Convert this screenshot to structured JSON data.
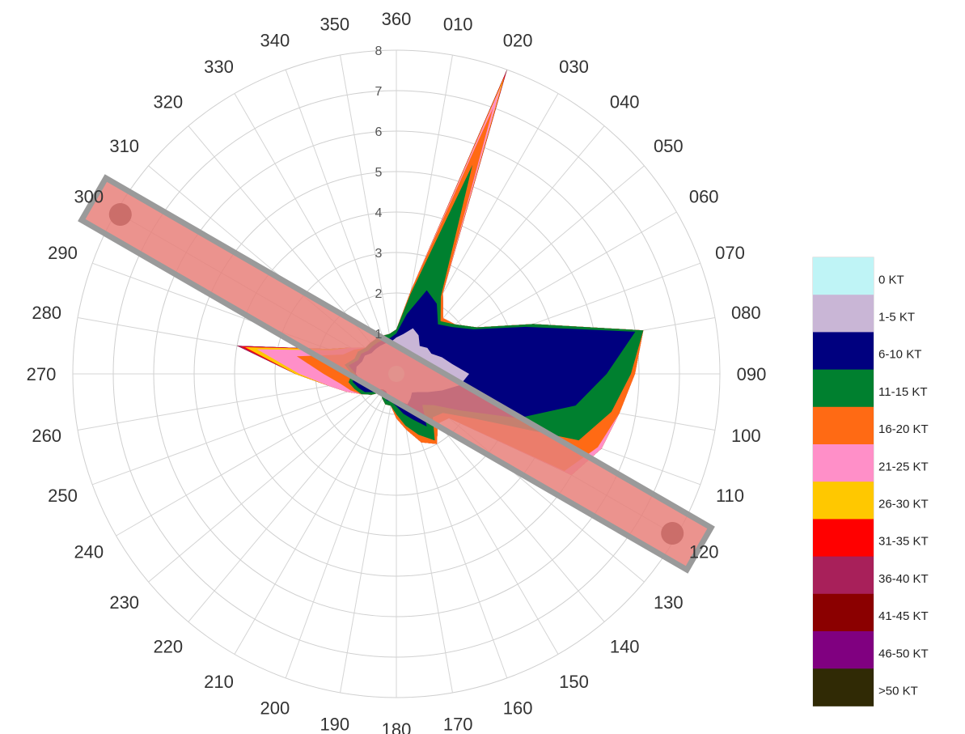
{
  "chart_data": {
    "type": "polar-area",
    "title": "",
    "radial_range": [
      0,
      8
    ],
    "radial_ticks": [
      "1",
      "2",
      "3",
      "4",
      "5",
      "6",
      "7",
      "8"
    ],
    "direction_labels": [
      "360",
      "010",
      "020",
      "030",
      "040",
      "050",
      "060",
      "070",
      "080",
      "090",
      "100",
      "110",
      "120",
      "130",
      "140",
      "150",
      "160",
      "170",
      "180",
      "190",
      "200",
      "210",
      "220",
      "230",
      "240",
      "250",
      "260",
      "270",
      "280",
      "290",
      "300",
      "310",
      "320",
      "330",
      "340",
      "350"
    ],
    "grid": true,
    "legend_position": "right",
    "runway": {
      "heading_ends": [
        120,
        300
      ],
      "color": "#e8807a",
      "label_ends": [
        "120",
        "300"
      ]
    },
    "series": [
      {
        "name": "0 KT",
        "color": "#bff4f6",
        "values": [
          0.2,
          0.2,
          0.2,
          0.2,
          0.2,
          0.2,
          0.2,
          0.2,
          0.2,
          0.2,
          0.2,
          0.2,
          0.2,
          0.2,
          0.2,
          0.2,
          0.2,
          0.2,
          0.2,
          0.2,
          0.2,
          0.2,
          0.2,
          0.2,
          0.2,
          0.2,
          0.2,
          0.2,
          0.2,
          0.2,
          0.2,
          0.2,
          0.2,
          0.2,
          0.2,
          0.2
        ]
      },
      {
        "name": "1-5 KT",
        "color": "#c9b6d6",
        "values": [
          0.9,
          1.0,
          1.2,
          1.1,
          0.9,
          1.0,
          1.0,
          1.2,
          1.4,
          1.8,
          1.6,
          1.2,
          0.9,
          0.7,
          0.6,
          0.7,
          0.8,
          0.7,
          0.7,
          0.6,
          0.6,
          0.5,
          0.5,
          0.6,
          0.7,
          0.8,
          0.9,
          1.0,
          1.0,
          0.9,
          0.9,
          0.8,
          0.8,
          0.8,
          0.8,
          0.8
        ]
      },
      {
        "name": "6-10 KT",
        "color": "#00007f",
        "values": [
          1.0,
          1.5,
          2.2,
          2.0,
          1.6,
          1.8,
          2.2,
          3.4,
          6.0,
          5.2,
          4.5,
          3.2,
          1.8,
          1.2,
          1.0,
          1.5,
          1.2,
          1.0,
          0.8,
          0.7,
          0.7,
          0.6,
          0.5,
          0.7,
          0.9,
          1.0,
          1.1,
          1.0,
          1.2,
          1.0,
          1.0,
          0.9,
          0.9,
          0.9,
          0.9,
          0.9
        ]
      },
      {
        "name": "11-15 KT",
        "color": "#00802f",
        "values": [
          1.1,
          2.0,
          5.5,
          2.2,
          1.7,
          1.9,
          2.3,
          3.6,
          6.2,
          5.8,
          5.4,
          4.8,
          2.2,
          1.5,
          1.4,
          1.9,
          1.6,
          1.3,
          1.0,
          0.8,
          0.8,
          0.7,
          0.6,
          0.8,
          1.0,
          1.1,
          1.2,
          1.1,
          1.3,
          1.1,
          1.1,
          1.0,
          1.0,
          1.0,
          1.0,
          1.0
        ]
      },
      {
        "name": "16-20 KT",
        "color": "#ff6a14",
        "values": [
          1.1,
          2.1,
          7.0,
          2.3,
          1.8,
          1.9,
          2.3,
          3.6,
          6.2,
          5.9,
          5.6,
          5.3,
          4.8,
          1.7,
          1.6,
          2.0,
          1.8,
          1.4,
          1.1,
          0.8,
          0.8,
          0.7,
          0.6,
          0.8,
          1.0,
          1.2,
          1.4,
          1.8,
          2.5,
          1.4,
          1.2,
          1.0,
          1.0,
          1.0,
          1.0,
          1.0
        ]
      },
      {
        "name": "21-25 KT",
        "color": "#ff8fc8",
        "values": [
          1.1,
          2.1,
          7.6,
          2.3,
          1.8,
          1.9,
          2.3,
          3.6,
          6.2,
          5.9,
          5.6,
          5.4,
          5.0,
          1.7,
          1.6,
          2.0,
          1.8,
          1.4,
          1.1,
          0.8,
          0.8,
          0.7,
          0.6,
          0.8,
          1.0,
          1.3,
          1.7,
          2.4,
          3.5,
          1.7,
          1.3,
          1.0,
          1.0,
          1.0,
          1.0,
          1.0
        ]
      },
      {
        "name": "26-30 KT",
        "color": "#ffc800",
        "values": [
          1.1,
          2.1,
          7.8,
          2.3,
          1.8,
          1.9,
          2.3,
          3.6,
          6.2,
          5.9,
          5.6,
          5.4,
          5.0,
          1.7,
          1.6,
          2.0,
          1.8,
          1.4,
          1.1,
          0.8,
          0.8,
          0.7,
          0.6,
          0.8,
          1.0,
          1.3,
          1.7,
          2.5,
          3.8,
          1.8,
          1.3,
          1.0,
          1.0,
          1.0,
          1.0,
          1.0
        ]
      },
      {
        "name": "31-35 KT",
        "color": "#ff0000",
        "values": [
          1.1,
          2.1,
          7.9,
          2.3,
          1.8,
          1.9,
          2.3,
          3.6,
          6.2,
          5.9,
          5.6,
          5.4,
          5.0,
          1.7,
          1.6,
          2.0,
          1.8,
          1.4,
          1.1,
          0.8,
          0.8,
          0.7,
          0.6,
          0.8,
          1.0,
          1.3,
          1.7,
          2.5,
          3.9,
          1.8,
          1.3,
          1.0,
          1.0,
          1.0,
          1.0,
          1.0
        ]
      },
      {
        "name": "36-40 KT",
        "color": "#a8205a",
        "values": [
          1.1,
          2.1,
          7.95,
          2.3,
          1.8,
          1.9,
          2.3,
          3.6,
          6.2,
          5.9,
          5.6,
          5.4,
          5.0,
          1.7,
          1.6,
          2.0,
          1.8,
          1.4,
          1.1,
          0.8,
          0.8,
          0.7,
          0.6,
          0.8,
          1.0,
          1.3,
          1.7,
          2.5,
          4.0,
          1.8,
          1.3,
          1.0,
          1.0,
          1.0,
          1.0,
          1.0
        ]
      },
      {
        "name": "41-45 KT",
        "color": "#8b0000",
        "values": [
          1.1,
          2.1,
          8.0,
          2.3,
          1.8,
          1.9,
          2.3,
          3.6,
          6.2,
          5.9,
          5.6,
          5.4,
          5.0,
          1.7,
          1.6,
          2.0,
          1.8,
          1.4,
          1.1,
          0.8,
          0.8,
          0.7,
          0.6,
          0.8,
          1.0,
          1.3,
          1.7,
          2.5,
          4.0,
          1.8,
          1.3,
          1.0,
          1.0,
          1.0,
          1.0,
          1.0
        ]
      },
      {
        "name": "46-50 KT",
        "color": "#800080",
        "values": [
          1.1,
          2.1,
          8.0,
          2.3,
          1.8,
          1.9,
          2.3,
          3.6,
          6.2,
          5.9,
          5.6,
          5.4,
          5.0,
          1.7,
          1.6,
          2.0,
          1.8,
          1.4,
          1.1,
          0.8,
          0.8,
          0.7,
          0.6,
          0.8,
          1.0,
          1.3,
          1.7,
          2.5,
          4.0,
          1.8,
          1.3,
          1.0,
          1.0,
          1.0,
          1.0,
          1.0
        ]
      },
      {
        "name": ">50 KT",
        "color": "#302a05",
        "values": [
          1.1,
          2.1,
          8.0,
          2.3,
          1.8,
          1.9,
          2.3,
          3.6,
          6.2,
          5.9,
          5.6,
          5.4,
          5.0,
          1.7,
          1.6,
          2.0,
          1.8,
          1.4,
          1.1,
          0.8,
          0.8,
          0.7,
          0.6,
          0.8,
          1.0,
          1.3,
          1.7,
          2.5,
          4.0,
          1.8,
          1.3,
          1.0,
          1.0,
          1.0,
          1.0,
          1.0
        ]
      }
    ]
  }
}
